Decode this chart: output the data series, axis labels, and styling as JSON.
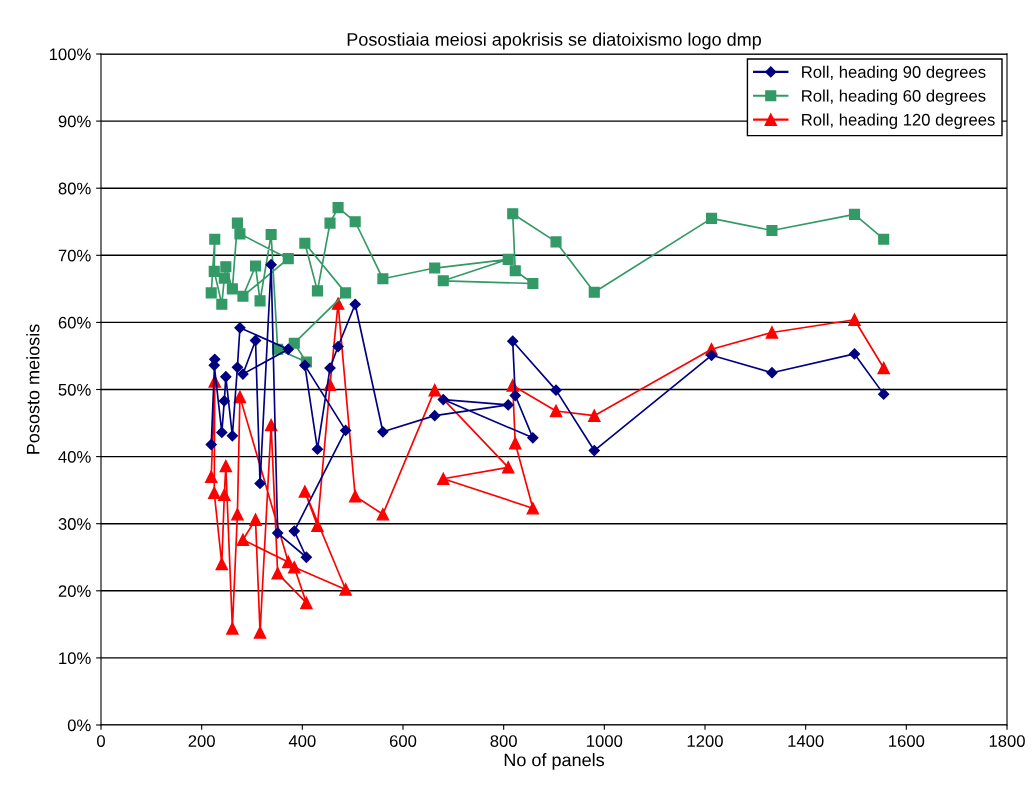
{
  "chart_data": {
    "type": "line",
    "title": "Posostiaia meiosi apokrisis se diatoixismo logo dmp",
    "xlabel": "No of panels",
    "ylabel": "Pososto meiosis",
    "x": [
      219,
      226,
      225,
      240,
      245,
      248,
      261,
      271,
      276,
      372,
      282,
      307,
      316,
      338,
      351,
      408,
      384,
      486,
      405,
      430,
      455,
      471,
      505,
      560,
      663,
      809,
      680,
      858,
      823,
      818,
      904,
      980,
      1213,
      1333,
      1497,
      1555
    ],
    "series": [
      {
        "name": "Roll, heading 90 degrees",
        "color": "#000080",
        "marker": "diamond",
        "values": [
          41.8,
          54.5,
          53.6,
          43.6,
          48.3,
          51.9,
          43.1,
          53.3,
          59.2,
          56.0,
          52.3,
          57.3,
          36.0,
          68.6,
          28.6,
          25.0,
          28.9,
          43.9,
          53.6,
          41.1,
          53.2,
          56.4,
          62.7,
          43.7,
          46.1,
          47.7,
          48.5,
          42.8,
          49.1,
          57.2,
          49.9,
          40.9,
          55.1,
          52.5,
          55.3,
          49.3
        ]
      },
      {
        "name": "Roll, heading 60 degrees",
        "color": "#339966",
        "marker": "square",
        "values": [
          64.4,
          72.4,
          67.6,
          62.7,
          66.6,
          68.3,
          65.0,
          74.8,
          73.2,
          69.5,
          63.9,
          68.4,
          63.2,
          73.1,
          56.0,
          54.1,
          56.9,
          64.4,
          71.8,
          64.7,
          74.8,
          77.1,
          75.0,
          66.5,
          68.1,
          69.4,
          66.2,
          65.8,
          67.7,
          76.2,
          72.0,
          64.5,
          75.5,
          73.7,
          76.1,
          72.4
        ]
      },
      {
        "name": "Roll, heading 120 degrees",
        "color": "#ff0000",
        "marker": "triangle",
        "values": [
          37.0,
          51.2,
          34.6,
          24.0,
          34.3,
          38.6,
          14.4,
          31.4,
          48.9,
          24.3,
          27.6,
          30.6,
          13.8,
          44.7,
          22.6,
          18.2,
          23.5,
          20.2,
          34.8,
          29.7,
          50.7,
          62.8,
          34.1,
          31.4,
          49.9,
          38.4,
          36.7,
          32.3,
          42.0,
          50.6,
          46.8,
          46.1,
          56.0,
          58.5,
          60.4,
          53.2
        ]
      }
    ],
    "xlim": [
      0,
      1800
    ],
    "xticks": [
      0,
      200,
      400,
      600,
      800,
      1000,
      1200,
      1400,
      1600,
      1800
    ],
    "ylim": [
      0,
      100
    ],
    "yticks": [
      {
        "value": 0,
        "label": "0%"
      },
      {
        "value": 10,
        "label": "10%"
      },
      {
        "value": 20,
        "label": "20%"
      },
      {
        "value": 30,
        "label": "30%"
      },
      {
        "value": 40,
        "label": "40%"
      },
      {
        "value": 50,
        "label": "50%"
      },
      {
        "value": 60,
        "label": "60%"
      },
      {
        "value": 70,
        "label": "70%"
      },
      {
        "value": 80,
        "label": "80%"
      },
      {
        "value": 90,
        "label": "90%"
      },
      {
        "value": 100,
        "label": "100%"
      }
    ],
    "grid": "y",
    "legend": "top right",
    "line_style": "solid"
  }
}
